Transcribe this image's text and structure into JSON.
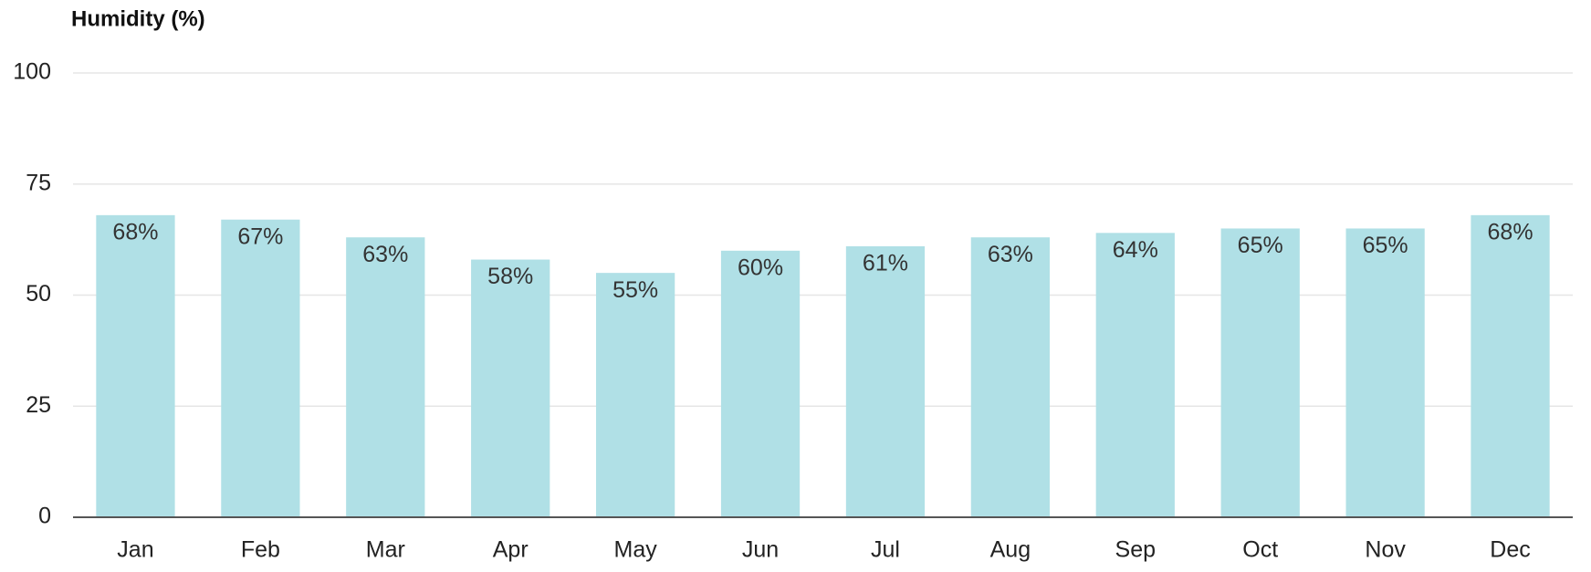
{
  "chart_data": {
    "type": "bar",
    "title": "Humidity (%)",
    "categories": [
      "Jan",
      "Feb",
      "Mar",
      "Apr",
      "May",
      "Jun",
      "Jul",
      "Aug",
      "Sep",
      "Oct",
      "Nov",
      "Dec"
    ],
    "values": [
      68,
      67,
      63,
      58,
      55,
      60,
      61,
      63,
      64,
      65,
      65,
      68
    ],
    "value_labels": [
      "68%",
      "67%",
      "63%",
      "58%",
      "55%",
      "60%",
      "61%",
      "63%",
      "64%",
      "65%",
      "65%",
      "68%"
    ],
    "color": "#b0e0e6",
    "ylim": [
      0,
      100
    ],
    "yticks": [
      0,
      25,
      50,
      75,
      100
    ],
    "grid": true
  }
}
